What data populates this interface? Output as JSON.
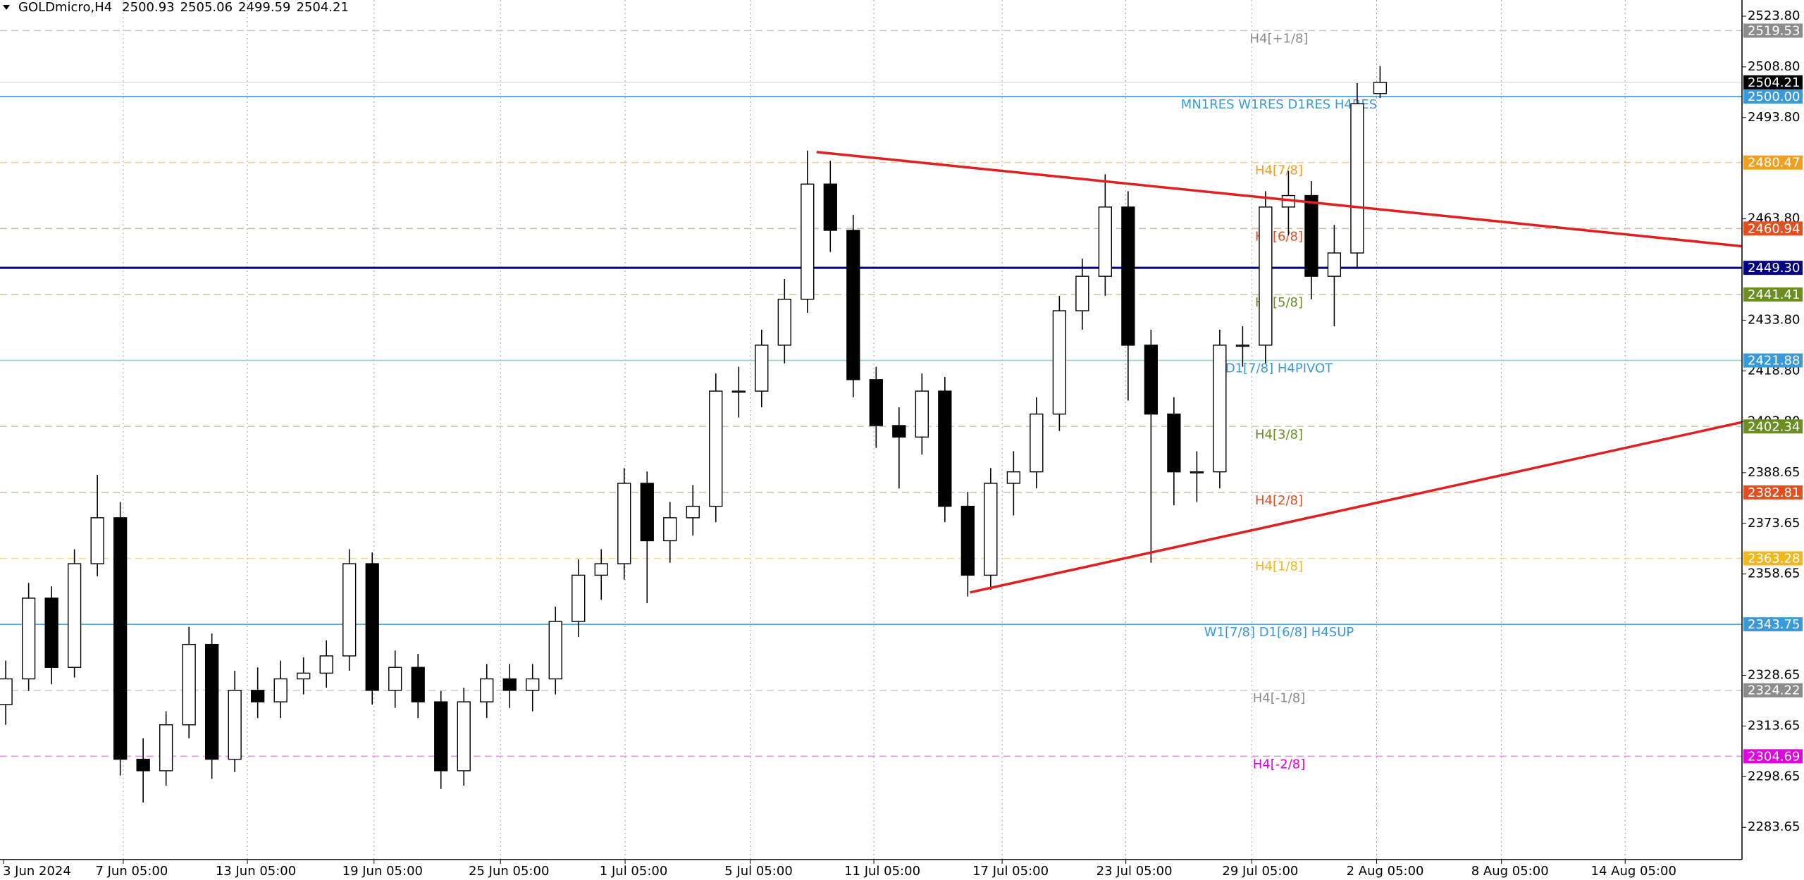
{
  "chart_data": {
    "type": "candlestick",
    "symbol": "GOLDmicro,H4",
    "ohlc": [
      2500.93,
      2505.06,
      2499.59,
      2504.21
    ],
    "x": [
      0,
      1,
      2,
      3,
      4,
      5,
      6,
      7,
      8,
      9,
      10,
      11,
      12,
      13,
      14,
      15,
      16,
      17,
      18,
      19,
      20,
      21,
      22,
      23,
      24,
      25,
      26,
      27,
      28,
      29,
      30,
      31,
      32,
      33,
      34,
      35,
      36,
      37,
      38,
      39,
      40,
      41,
      42,
      43,
      44,
      45,
      46,
      47,
      48,
      49,
      50,
      51,
      52,
      53,
      54,
      55,
      56,
      57,
      58,
      59,
      60
    ],
    "open": [
      2320,
      2327.6,
      2351.5,
      2331,
      2361.7,
      2375.3,
      2303.8,
      2300.4,
      2314,
      2337.8,
      2303.8,
      2324.2,
      2320.8,
      2327.6,
      2329.3,
      2334.4,
      2361.7,
      2324.2,
      2331,
      2320.8,
      2300.4,
      2320.8,
      2327.6,
      2324.2,
      2327.6,
      2344.6,
      2358.3,
      2361.7,
      2385.5,
      2368.5,
      2375.3,
      2378.7,
      2412.8,
      2412.8,
      2426.4,
      2440,
      2474.1,
      2460.4,
      2416.2,
      2402.6,
      2399.2,
      2412.8,
      2378.7,
      2358.3,
      2385.5,
      2388.9,
      2406,
      2436.6,
      2446.8,
      2467.3,
      2426.4,
      2406,
      2388.9,
      2388.9,
      2426.4,
      2426.4,
      2467.3,
      2470.7,
      2446.8,
      2453.7,
      2500.9
    ],
    "high": [
      2333,
      2356,
      2355,
      2366,
      2388,
      2380,
      2310,
      2318,
      2343,
      2341,
      2330,
      2331,
      2333,
      2334,
      2339,
      2366,
      2365,
      2336,
      2335,
      2324,
      2325,
      2332,
      2332,
      2332,
      2349,
      2363,
      2366,
      2390,
      2389,
      2380,
      2385,
      2418,
      2420,
      2431,
      2446,
      2484,
      2481,
      2465,
      2420,
      2408,
      2418,
      2417,
      2383,
      2390,
      2395,
      2411,
      2441,
      2452,
      2477,
      2472,
      2431,
      2411,
      2395,
      2431,
      2432,
      2472,
      2478,
      2475,
      2462,
      2504,
      2509
    ],
    "low": [
      2314,
      2324,
      2326,
      2328,
      2358,
      2299,
      2291,
      2296,
      2310,
      2298,
      2300,
      2316,
      2316,
      2323,
      2325,
      2330,
      2320,
      2319,
      2316,
      2295,
      2296,
      2316,
      2319,
      2318,
      2323,
      2340,
      2351,
      2357,
      2350,
      2362,
      2370,
      2374,
      2405,
      2408,
      2421,
      2436,
      2454,
      2411,
      2396,
      2384,
      2394,
      2374,
      2352,
      2354,
      2376,
      2384,
      2401,
      2431,
      2441,
      2410,
      2362,
      2379,
      2380,
      2384,
      2420,
      2421,
      2459,
      2440,
      2432,
      2449,
      2499.6
    ],
    "close": [
      2327.6,
      2351.5,
      2331,
      2361.7,
      2375.3,
      2303.8,
      2300.4,
      2314,
      2337.8,
      2303.8,
      2324.2,
      2320.8,
      2327.6,
      2329.3,
      2334.4,
      2361.7,
      2324.2,
      2331,
      2320.8,
      2300.4,
      2320.8,
      2327.6,
      2324.2,
      2327.6,
      2344.6,
      2358.3,
      2361.7,
      2385.5,
      2368.5,
      2375.3,
      2378.7,
      2412.8,
      2412.8,
      2426.4,
      2440,
      2474.1,
      2460.4,
      2416.2,
      2402.6,
      2399.2,
      2412.8,
      2378.7,
      2358.3,
      2385.5,
      2388.9,
      2406,
      2436.6,
      2446.8,
      2467.3,
      2426.4,
      2406,
      2388.9,
      2388.9,
      2426.4,
      2426.4,
      2467.3,
      2470.7,
      2446.8,
      2453.7,
      2497.9,
      2504.2
    ],
    "up_color": "#ffffff",
    "down_color": "#000000",
    "wick_color": "#000000",
    "xlim": [
      -0.25,
      75.8
    ],
    "ylim": [
      2274.1,
      2528.6
    ],
    "xticks": [
      {
        "value": -0.1,
        "label": "3 Jun 2024"
      },
      {
        "value": 5.13,
        "label": "7 Jun 05:00"
      },
      {
        "value": 10.55,
        "label": "13 Jun 05:00"
      },
      {
        "value": 16.08,
        "label": "19 Jun 05:00"
      },
      {
        "value": 21.6,
        "label": "25 Jun 05:00"
      },
      {
        "value": 27.04,
        "label": "1 Jul 05:00"
      },
      {
        "value": 32.5,
        "label": "5 Jul 05:00"
      },
      {
        "value": 37.9,
        "label": "11 Jul 05:00"
      },
      {
        "value": 43.5,
        "label": "17 Jul 05:00"
      },
      {
        "value": 48.9,
        "label": "23 Jul 05:00"
      },
      {
        "value": 54.4,
        "label": "29 Jul 05:00"
      },
      {
        "value": 59.85,
        "label": "2 Aug 05:00"
      },
      {
        "value": 65.3,
        "label": "8 Aug 05:00"
      },
      {
        "value": 70.7,
        "label": "14 Aug 05:00"
      }
    ],
    "yticks": [
      {
        "value": 2523.8,
        "label": "2523.80"
      },
      {
        "value": 2508.8,
        "label": "2508.80"
      },
      {
        "value": 2493.8,
        "label": "2493.80"
      },
      {
        "value": 2463.8,
        "label": "2463.80"
      },
      {
        "value": 2433.8,
        "label": "2433.80"
      },
      {
        "value": 2418.8,
        "label": "2418.80"
      },
      {
        "value": 2403.8,
        "label": "2403.80"
      },
      {
        "value": 2388.65,
        "label": "2388.65"
      },
      {
        "value": 2373.65,
        "label": "2373.65"
      },
      {
        "value": 2358.65,
        "label": "2358.65"
      },
      {
        "value": 2328.65,
        "label": "2328.65"
      },
      {
        "value": 2313.65,
        "label": "2313.65"
      },
      {
        "value": 2298.65,
        "label": "2298.65"
      },
      {
        "value": 2283.65,
        "label": "2283.65"
      }
    ],
    "xgrid": true,
    "levels": [
      {
        "value": 2519.53,
        "color": "#8c8c8c",
        "line_color": "#c8c8c8",
        "style": "dashed",
        "label": "H4[+1/8]"
      },
      {
        "value": 2500,
        "value_label": "2500.00",
        "color": "#3a9ad9",
        "line_color": "#3a9ad9",
        "style": "solid",
        "label": "MN1RES W1RES D1RES H4RES"
      },
      {
        "value": 2480.47,
        "color": "#f0a020",
        "line_color": "#f2cf9a",
        "style": "dashed",
        "label": "H4[7/8]"
      },
      {
        "value": 2460.94,
        "color": "#e05020",
        "line_color": "#d8b8a8",
        "style": "dashed",
        "label": "H4[6/8]"
      },
      {
        "value": 2449.3,
        "value_label": "2449.30",
        "color": "#000080",
        "line_color": "#000080",
        "style": "bold"
      },
      {
        "value": 2441.41,
        "color": "#6b8e23",
        "line_color": "#c6cdb0",
        "style": "dashed",
        "label": "H4[5/8]"
      },
      {
        "value": 2421.88,
        "color": "#3a9ad9",
        "line_color": "#8fd6d6",
        "style": "solid",
        "label": "D1[7/8] H4PIVOT"
      },
      {
        "value": 2402.34,
        "color": "#6b8e23",
        "line_color": "#c6cdb0",
        "style": "dashed",
        "label": "H4[3/8]"
      },
      {
        "value": 2382.81,
        "color": "#e05020",
        "line_color": "#d8b8a8",
        "style": "dashed",
        "label": "H4[2/8]"
      },
      {
        "value": 2363.28,
        "color": "#f0b820",
        "line_color": "#f2dc9a",
        "style": "dashed",
        "label": "H4[1/8]"
      },
      {
        "value": 2343.75,
        "color": "#3a9ad9",
        "line_color": "#3a9ad9",
        "style": "solid",
        "label": "W1[7/8] D1[6/8] H4SUP"
      },
      {
        "value": 2324.22,
        "color": "#8c8c8c",
        "line_color": "#c8c8c8",
        "style": "dashed",
        "label": "H4[-1/8]"
      },
      {
        "value": 2304.69,
        "color": "#e000e0",
        "line_color": "#e0a0e0",
        "style": "dashed",
        "label": "H4[-2/8]"
      }
    ],
    "current_price": 2504.21,
    "trendlines": [
      {
        "color": "#e02020",
        "x": [
          35.4,
          75.8
        ],
        "y": [
          2483.6,
          2455.7
        ]
      },
      {
        "color": "#e02020",
        "x": [
          42.1,
          75.8
        ],
        "y": [
          2353.2,
          2403.6
        ]
      }
    ]
  }
}
